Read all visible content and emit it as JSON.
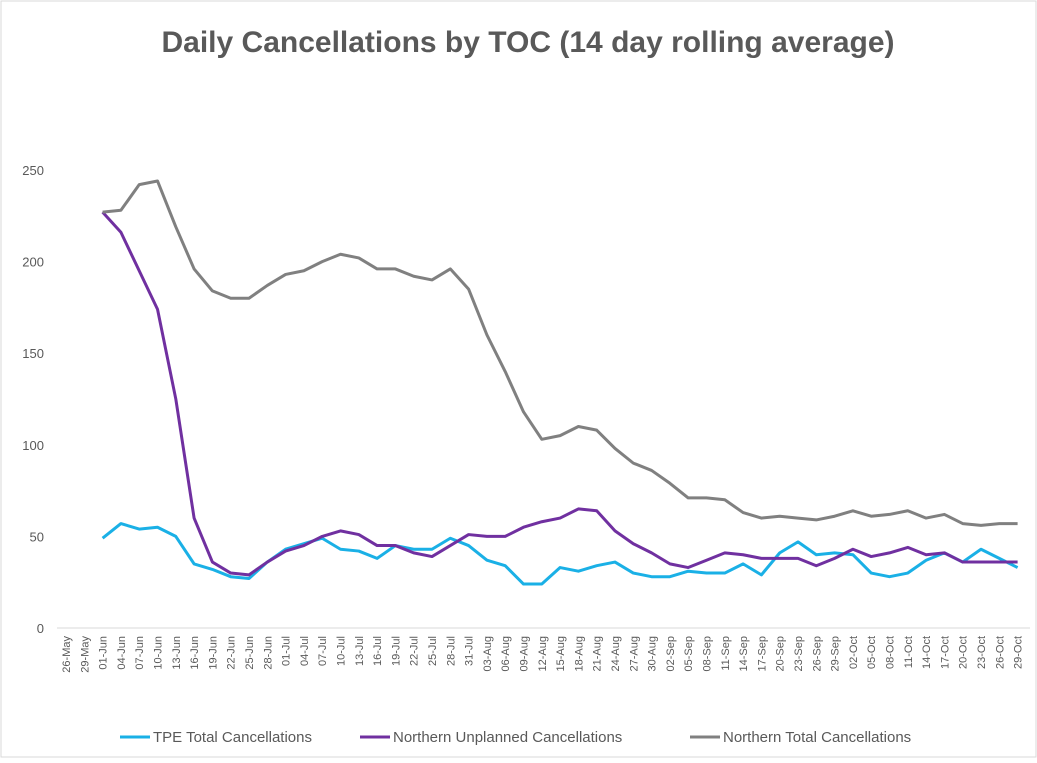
{
  "chart_data": {
    "type": "line",
    "title": "Daily Cancellations by TOC (14 day rolling average)",
    "categories": [
      "26-May",
      "29-May",
      "01-Jun",
      "04-Jun",
      "07-Jun",
      "10-Jun",
      "13-Jun",
      "16-Jun",
      "19-Jun",
      "22-Jun",
      "25-Jun",
      "28-Jun",
      "01-Jul",
      "04-Jul",
      "07-Jul",
      "10-Jul",
      "13-Jul",
      "16-Jul",
      "19-Jul",
      "22-Jul",
      "25-Jul",
      "28-Jul",
      "31-Jul",
      "03-Aug",
      "06-Aug",
      "09-Aug",
      "12-Aug",
      "15-Aug",
      "18-Aug",
      "21-Aug",
      "24-Aug",
      "27-Aug",
      "30-Aug",
      "02-Sep",
      "05-Sep",
      "08-Sep",
      "11-Sep",
      "14-Sep",
      "17-Sep",
      "20-Sep",
      "23-Sep",
      "26-Sep",
      "29-Sep",
      "02-Oct",
      "05-Oct",
      "08-Oct",
      "11-Oct",
      "14-Oct",
      "17-Oct",
      "20-Oct",
      "23-Oct",
      "26-Oct",
      "29-Oct"
    ],
    "series": [
      {
        "name": "TPE Total Cancellations",
        "color": "#1ab0e6",
        "values": [
          null,
          null,
          49,
          57,
          54,
          55,
          50,
          35,
          32,
          28,
          27,
          36,
          43,
          46,
          49,
          43,
          42,
          38,
          45,
          43,
          43,
          49,
          45,
          37,
          34,
          24,
          24,
          33,
          31,
          34,
          36,
          30,
          28,
          28,
          31,
          30,
          30,
          35,
          29,
          41,
          47,
          40,
          41,
          40,
          30,
          28,
          30,
          37,
          41,
          36,
          43,
          38,
          33
        ]
      },
      {
        "name": "Northern Unplanned Cancellations",
        "color": "#7030a0",
        "values": [
          null,
          null,
          227,
          216,
          195,
          174,
          125,
          60,
          36,
          30,
          29,
          36,
          42,
          45,
          50,
          53,
          51,
          45,
          45,
          41,
          39,
          45,
          51,
          50,
          50,
          55,
          58,
          60,
          65,
          64,
          53,
          46,
          41,
          35,
          33,
          37,
          41,
          40,
          38,
          38,
          38,
          34,
          38,
          43,
          39,
          41,
          44,
          40,
          41,
          36,
          36,
          36,
          36
        ]
      },
      {
        "name": "Northern Total Cancellations",
        "color": "#808080",
        "values": [
          null,
          null,
          227,
          228,
          242,
          244,
          219,
          196,
          184,
          180,
          180,
          187,
          193,
          195,
          200,
          204,
          202,
          196,
          196,
          192,
          190,
          196,
          185,
          160,
          140,
          118,
          103,
          105,
          110,
          108,
          98,
          90,
          86,
          79,
          71,
          71,
          70,
          63,
          60,
          61,
          60,
          59,
          61,
          64,
          61,
          62,
          64,
          60,
          62,
          57,
          56,
          57,
          57
        ]
      }
    ],
    "ylim": [
      0,
      250
    ],
    "yticks": [
      0,
      50,
      100,
      150,
      200,
      250
    ],
    "legend": "bottom"
  }
}
